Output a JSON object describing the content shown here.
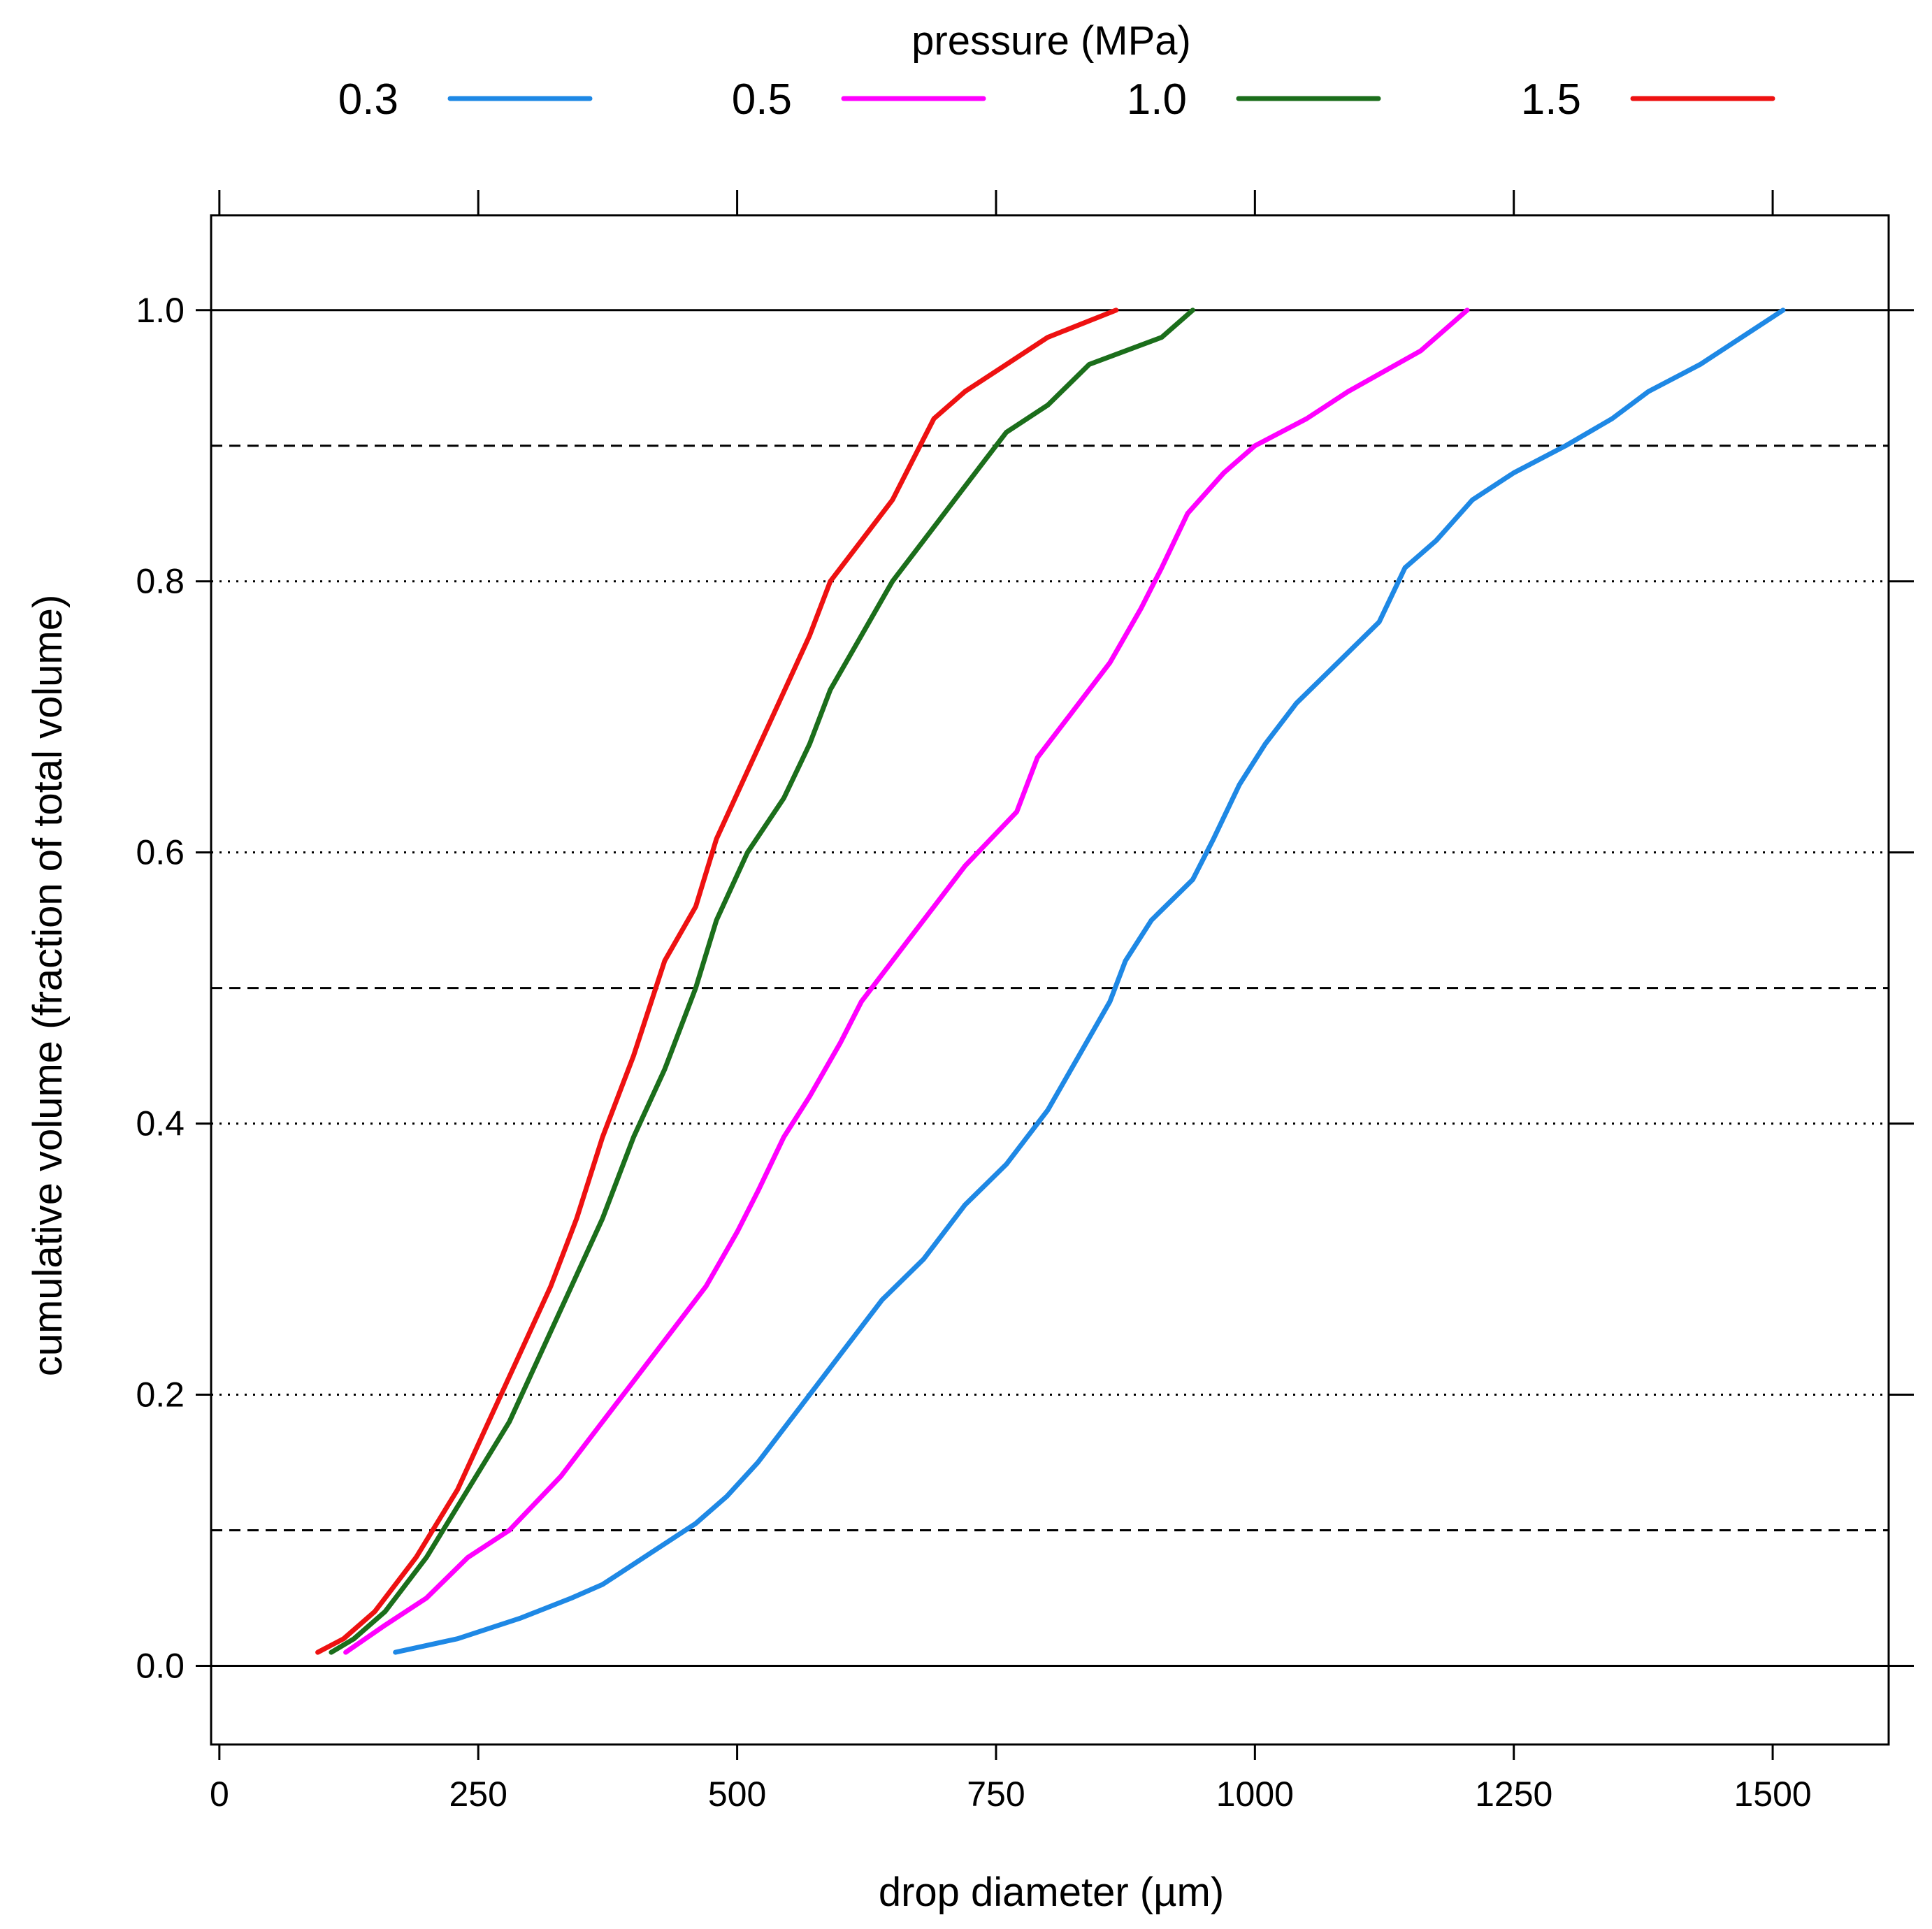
{
  "chart_data": {
    "type": "line",
    "title": "",
    "xlabel": "drop diameter (µm)",
    "ylabel": "cumulative volume (fraction of total volume)",
    "xlim": [
      -8,
      1612
    ],
    "ylim": [
      -0.058,
      1.07
    ],
    "x_ticks": [
      0,
      250,
      500,
      750,
      1000,
      1250,
      1500
    ],
    "x_tick_labels": [
      "0",
      "250",
      "500",
      "750",
      "1000",
      "1250",
      "1500"
    ],
    "y_ticks": [
      0.0,
      0.2,
      0.4,
      0.6,
      0.8,
      1.0
    ],
    "y_tick_labels": [
      "0.0",
      "0.2",
      "0.4",
      "0.6",
      "0.8",
      "1.0"
    ],
    "legend": {
      "title": "pressure (MPa)",
      "placement": "top",
      "entries": [
        "0.3",
        "0.5",
        "1.0",
        "1.5"
      ]
    },
    "reference_lines": [
      {
        "y": 0.0,
        "style": "solid"
      },
      {
        "y": 0.1,
        "style": "dashed"
      },
      {
        "y": 0.2,
        "style": "dotted"
      },
      {
        "y": 0.4,
        "style": "dotted"
      },
      {
        "y": 0.5,
        "style": "dashed"
      },
      {
        "y": 0.6,
        "style": "dotted"
      },
      {
        "y": 0.8,
        "style": "dotted"
      },
      {
        "y": 0.9,
        "style": "dashed"
      },
      {
        "y": 1.0,
        "style": "solid"
      }
    ],
    "series": [
      {
        "name": "0.3",
        "color": "#1e88e5",
        "points": [
          [
            170,
            0.01
          ],
          [
            230,
            0.02
          ],
          [
            290,
            0.035
          ],
          [
            340,
            0.05
          ],
          [
            370,
            0.06
          ],
          [
            420,
            0.085
          ],
          [
            460,
            0.105
          ],
          [
            490,
            0.125
          ],
          [
            520,
            0.15
          ],
          [
            560,
            0.19
          ],
          [
            600,
            0.23
          ],
          [
            640,
            0.27
          ],
          [
            680,
            0.3
          ],
          [
            720,
            0.34
          ],
          [
            760,
            0.37
          ],
          [
            800,
            0.41
          ],
          [
            830,
            0.45
          ],
          [
            860,
            0.49
          ],
          [
            875,
            0.52
          ],
          [
            900,
            0.55
          ],
          [
            940,
            0.58
          ],
          [
            960,
            0.61
          ],
          [
            985,
            0.65
          ],
          [
            1010,
            0.68
          ],
          [
            1040,
            0.71
          ],
          [
            1080,
            0.74
          ],
          [
            1120,
            0.77
          ],
          [
            1145,
            0.81
          ],
          [
            1175,
            0.83
          ],
          [
            1210,
            0.86
          ],
          [
            1250,
            0.88
          ],
          [
            1300,
            0.9
          ],
          [
            1345,
            0.92
          ],
          [
            1380,
            0.94
          ],
          [
            1430,
            0.96
          ],
          [
            1510,
            1.0
          ]
        ]
      },
      {
        "name": "0.5",
        "color": "#ff00ff",
        "points": [
          [
            122,
            0.01
          ],
          [
            160,
            0.03
          ],
          [
            200,
            0.05
          ],
          [
            240,
            0.08
          ],
          [
            280,
            0.1
          ],
          [
            330,
            0.14
          ],
          [
            370,
            0.18
          ],
          [
            400,
            0.21
          ],
          [
            440,
            0.25
          ],
          [
            470,
            0.28
          ],
          [
            500,
            0.32
          ],
          [
            520,
            0.35
          ],
          [
            545,
            0.39
          ],
          [
            570,
            0.42
          ],
          [
            600,
            0.46
          ],
          [
            620,
            0.49
          ],
          [
            660,
            0.53
          ],
          [
            690,
            0.56
          ],
          [
            720,
            0.59
          ],
          [
            770,
            0.63
          ],
          [
            790,
            0.67
          ],
          [
            820,
            0.7
          ],
          [
            860,
            0.74
          ],
          [
            890,
            0.78
          ],
          [
            910,
            0.81
          ],
          [
            935,
            0.85
          ],
          [
            970,
            0.88
          ],
          [
            1000,
            0.9
          ],
          [
            1050,
            0.92
          ],
          [
            1090,
            0.94
          ],
          [
            1160,
            0.97
          ],
          [
            1205,
            1.0
          ]
        ]
      },
      {
        "name": "1.0",
        "color": "#1b6e1b",
        "points": [
          [
            108,
            0.01
          ],
          [
            130,
            0.02
          ],
          [
            160,
            0.04
          ],
          [
            200,
            0.08
          ],
          [
            240,
            0.13
          ],
          [
            280,
            0.18
          ],
          [
            310,
            0.23
          ],
          [
            340,
            0.28
          ],
          [
            370,
            0.33
          ],
          [
            400,
            0.39
          ],
          [
            430,
            0.44
          ],
          [
            460,
            0.5
          ],
          [
            480,
            0.55
          ],
          [
            510,
            0.6
          ],
          [
            545,
            0.64
          ],
          [
            570,
            0.68
          ],
          [
            590,
            0.72
          ],
          [
            620,
            0.76
          ],
          [
            650,
            0.8
          ],
          [
            680,
            0.83
          ],
          [
            710,
            0.86
          ],
          [
            740,
            0.89
          ],
          [
            760,
            0.91
          ],
          [
            800,
            0.93
          ],
          [
            840,
            0.96
          ],
          [
            910,
            0.98
          ],
          [
            940,
            1.0
          ]
        ]
      },
      {
        "name": "1.5",
        "color": "#ee1111",
        "points": [
          [
            95,
            0.01
          ],
          [
            120,
            0.02
          ],
          [
            150,
            0.04
          ],
          [
            190,
            0.08
          ],
          [
            230,
            0.13
          ],
          [
            260,
            0.18
          ],
          [
            290,
            0.23
          ],
          [
            320,
            0.28
          ],
          [
            345,
            0.33
          ],
          [
            370,
            0.39
          ],
          [
            400,
            0.45
          ],
          [
            430,
            0.52
          ],
          [
            460,
            0.56
          ],
          [
            480,
            0.61
          ],
          [
            510,
            0.66
          ],
          [
            540,
            0.71
          ],
          [
            570,
            0.76
          ],
          [
            590,
            0.8
          ],
          [
            620,
            0.83
          ],
          [
            650,
            0.86
          ],
          [
            670,
            0.89
          ],
          [
            690,
            0.92
          ],
          [
            720,
            0.94
          ],
          [
            760,
            0.96
          ],
          [
            800,
            0.98
          ],
          [
            866,
            1.0
          ]
        ]
      }
    ]
  }
}
